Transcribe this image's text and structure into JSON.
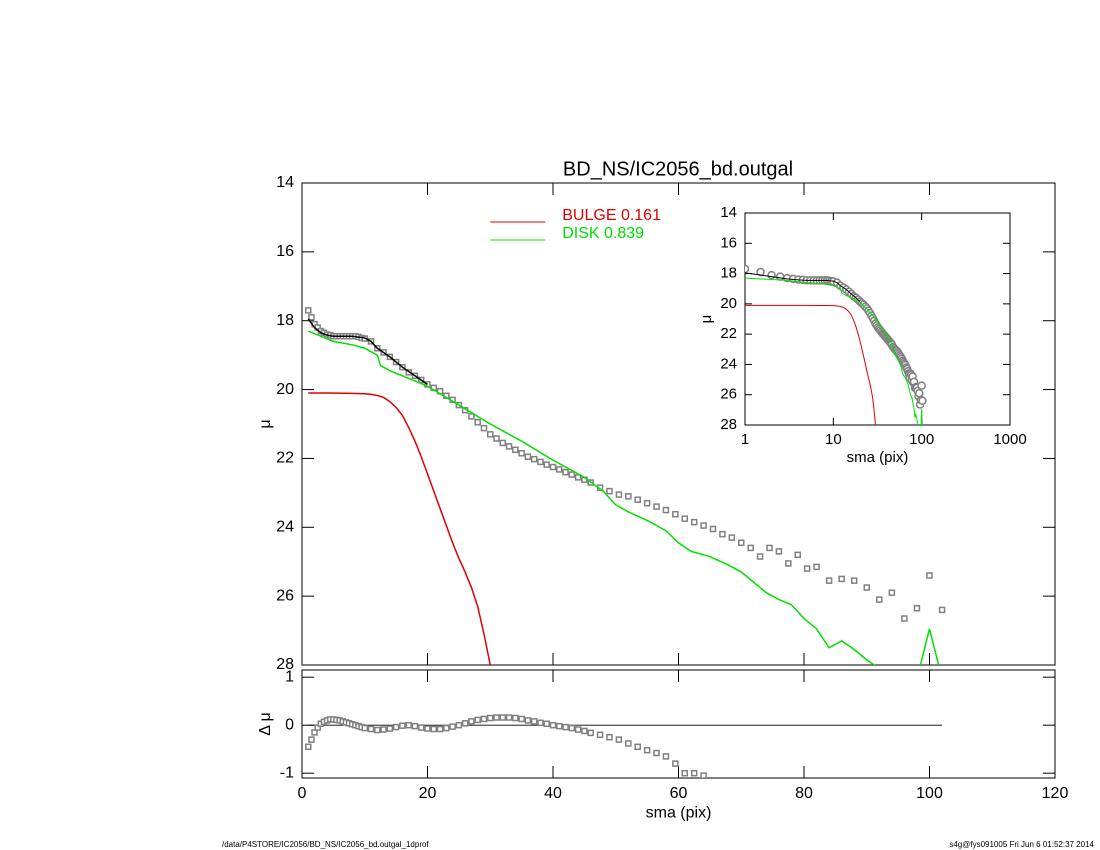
{
  "chart_data": [
    {
      "type": "line",
      "title": "BD_NS/IC2056_bd.outgal",
      "ylabel": "μ",
      "ylim": [
        28,
        14
      ],
      "yticks": [
        14,
        16,
        18,
        20,
        22,
        24,
        26,
        28
      ],
      "legend": "upper center",
      "series": [
        {
          "color": "#808080",
          "mode": "markers",
          "x": [
            1,
            1.5,
            2,
            2.5,
            3,
            3.5,
            4,
            4.5,
            5,
            5.5,
            6,
            6.5,
            7,
            7.5,
            8,
            8.5,
            9,
            9.5,
            10,
            11,
            12,
            13,
            14,
            15,
            16,
            17,
            18,
            19,
            20,
            21,
            22,
            23,
            24,
            25,
            26,
            27,
            28,
            29,
            30,
            31,
            32,
            33,
            34,
            35,
            36,
            37,
            38,
            39,
            40,
            41,
            42,
            43,
            44,
            45,
            46,
            47.5,
            49,
            50.5,
            52,
            53.5,
            55,
            56.5,
            58,
            59.5,
            61,
            62.5,
            64,
            65.5,
            67,
            68.5,
            70,
            71.5,
            73,
            74.5,
            76,
            77.5,
            79,
            80.5,
            82,
            84,
            86,
            88,
            90,
            92,
            94,
            96,
            98,
            100,
            102
          ],
          "values": [
            17.7,
            17.9,
            18.1,
            18.2,
            18.3,
            18.35,
            18.4,
            18.42,
            18.45,
            18.45,
            18.45,
            18.45,
            18.45,
            18.45,
            18.45,
            18.45,
            18.47,
            18.5,
            18.52,
            18.6,
            18.8,
            18.92,
            19.05,
            19.2,
            19.35,
            19.5,
            19.6,
            19.72,
            19.85,
            19.95,
            20.05,
            20.18,
            20.3,
            20.45,
            20.6,
            20.78,
            20.95,
            21.12,
            21.3,
            21.42,
            21.55,
            21.65,
            21.75,
            21.85,
            21.95,
            22.02,
            22.1,
            22.18,
            22.25,
            22.32,
            22.4,
            22.47,
            22.55,
            22.62,
            22.7,
            22.85,
            22.95,
            23.05,
            23.1,
            23.2,
            23.3,
            23.4,
            23.5,
            23.62,
            23.75,
            23.85,
            23.95,
            24.05,
            24.2,
            24.3,
            24.45,
            24.6,
            24.85,
            24.6,
            24.7,
            25.05,
            24.8,
            25.2,
            25.15,
            25.55,
            25.5,
            25.55,
            25.75,
            26.1,
            25.9,
            26.65,
            26.35,
            25.4,
            26.4
          ]
        },
        {
          "color": "#000000",
          "mode": "lines",
          "x": [
            1,
            2,
            3,
            4,
            5,
            6,
            8,
            10,
            11,
            12,
            14,
            16,
            18,
            20
          ],
          "values": [
            17.95,
            18.2,
            18.35,
            18.42,
            18.45,
            18.45,
            18.45,
            18.5,
            18.6,
            18.8,
            19.05,
            19.35,
            19.6,
            19.85
          ]
        },
        {
          "name": "BULGE  0.161",
          "color": "#e00000",
          "mode": "lines",
          "x": [
            1,
            4,
            8,
            10,
            11,
            12,
            13,
            14,
            15,
            16,
            17,
            18,
            19,
            20,
            21,
            22,
            23,
            24,
            25,
            26,
            27,
            28,
            29,
            30
          ],
          "values": [
            20.1,
            20.1,
            20.11,
            20.12,
            20.14,
            20.17,
            20.23,
            20.35,
            20.52,
            20.75,
            21.1,
            21.5,
            21.95,
            22.45,
            22.95,
            23.45,
            23.95,
            24.45,
            24.9,
            25.3,
            25.75,
            26.3,
            27.1,
            28.0
          ]
        },
        {
          "name": "DISK  0.839",
          "color": "#00e000",
          "mode": "lines",
          "x": [
            1,
            3,
            5,
            8,
            10,
            11,
            12,
            12.5,
            14,
            16,
            18,
            20,
            25,
            30,
            35,
            40,
            45,
            48,
            50,
            52,
            55,
            58,
            60,
            62,
            65,
            68,
            70,
            72,
            74,
            76,
            78,
            80,
            82,
            84,
            86,
            88,
            90,
            92,
            94,
            96,
            98,
            100,
            102
          ],
          "values": [
            18.3,
            18.45,
            18.6,
            18.7,
            18.8,
            18.9,
            19.0,
            19.3,
            19.45,
            19.6,
            19.75,
            19.9,
            20.45,
            21.0,
            21.5,
            22.05,
            22.55,
            22.95,
            23.35,
            23.55,
            23.8,
            24.1,
            24.45,
            24.7,
            24.85,
            25.1,
            25.3,
            25.6,
            25.9,
            26.1,
            26.25,
            26.65,
            26.95,
            27.5,
            27.3,
            27.55,
            27.85,
            28.1,
            28.3,
            28.4,
            28.4,
            26.95,
            28.4
          ]
        }
      ]
    },
    {
      "type": "line",
      "xscale": "log",
      "xlabel": "sma (pix)",
      "ylabel": "μ",
      "xlim": [
        1,
        1000
      ],
      "xticks": [
        1,
        10,
        100,
        1000
      ],
      "ylim": [
        28,
        14
      ],
      "yticks": [
        14,
        16,
        18,
        20,
        22,
        24,
        26,
        28
      ]
    },
    {
      "type": "scatter",
      "xlabel": "sma (pix)",
      "ylabel": "Δ μ",
      "xlim": [
        0,
        120
      ],
      "xticks": [
        0,
        20,
        40,
        60,
        80,
        100,
        120
      ],
      "ylim": [
        -1.1,
        1.15
      ],
      "yticks": [
        -1,
        0,
        1
      ],
      "color": "#808080",
      "x": [
        1,
        1.5,
        2,
        2.5,
        3,
        3.5,
        4,
        4.5,
        5,
        5.5,
        6,
        6.5,
        7,
        7.5,
        8,
        8.5,
        9,
        9.5,
        10,
        11,
        12,
        13,
        14,
        15,
        16,
        17,
        18,
        19,
        20,
        21,
        22,
        23,
        24,
        25,
        26,
        27,
        28,
        29,
        30,
        31,
        32,
        33,
        34,
        35,
        36,
        37,
        38,
        39,
        40,
        41,
        42,
        43,
        44,
        45,
        46,
        47.5,
        49,
        50.5,
        52,
        53.5,
        55,
        56.5,
        58,
        59.5,
        61,
        62.5,
        64
      ],
      "values": [
        -0.45,
        -0.3,
        -0.15,
        -0.05,
        0.03,
        0.07,
        0.1,
        0.12,
        0.12,
        0.11,
        0.1,
        0.08,
        0.06,
        0.04,
        0.02,
        0.0,
        -0.02,
        -0.04,
        -0.06,
        -0.08,
        -0.1,
        -0.09,
        -0.07,
        -0.04,
        -0.01,
        0.0,
        -0.02,
        -0.05,
        -0.07,
        -0.08,
        -0.08,
        -0.06,
        -0.03,
        0.0,
        0.04,
        0.08,
        0.11,
        0.13,
        0.15,
        0.16,
        0.16,
        0.16,
        0.15,
        0.13,
        0.1,
        0.08,
        0.05,
        0.03,
        0.0,
        -0.02,
        -0.04,
        -0.06,
        -0.09,
        -0.12,
        -0.16,
        -0.2,
        -0.25,
        -0.3,
        -0.38,
        -0.45,
        -0.52,
        -0.58,
        -0.65,
        -0.8,
        -1.0,
        -1.0,
        -1.05
      ]
    }
  ],
  "footer": {
    "left": "/data/P4STORE/IC2056/BD_NS/IC2056_bd.outgal_1dprof",
    "right": "s4g@fys091005  Fri Jun  6 01:52:37 2014"
  }
}
